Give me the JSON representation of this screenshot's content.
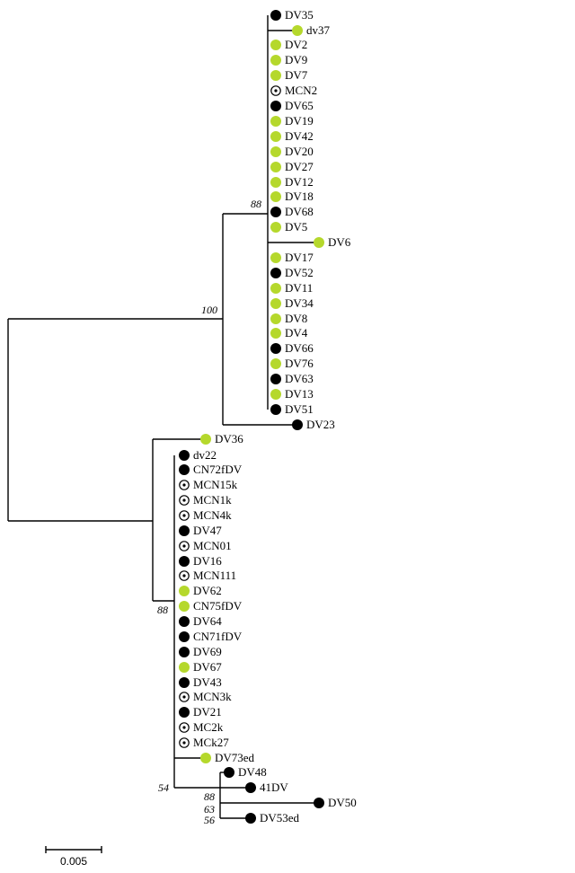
{
  "legend_colors": {
    "green": "#b5d82c",
    "black": "#000000",
    "open": "#ffffff"
  },
  "tips": [
    {
      "label": "DV35",
      "marker": "black"
    },
    {
      "label": "dv37",
      "marker": "green"
    },
    {
      "label": "DV2",
      "marker": "green"
    },
    {
      "label": "DV9",
      "marker": "green"
    },
    {
      "label": "DV7",
      "marker": "green"
    },
    {
      "label": "MCN2",
      "marker": "open"
    },
    {
      "label": "DV65",
      "marker": "black"
    },
    {
      "label": "DV19",
      "marker": "green"
    },
    {
      "label": "DV42",
      "marker": "green"
    },
    {
      "label": "DV20",
      "marker": "green"
    },
    {
      "label": "DV27",
      "marker": "green"
    },
    {
      "label": "DV12",
      "marker": "green"
    },
    {
      "label": "DV18",
      "marker": "green"
    },
    {
      "label": "DV68",
      "marker": "black"
    },
    {
      "label": "DV5",
      "marker": "green"
    },
    {
      "label": "DV6",
      "marker": "green"
    },
    {
      "label": "DV17",
      "marker": "green"
    },
    {
      "label": "DV52",
      "marker": "black"
    },
    {
      "label": "DV11",
      "marker": "green"
    },
    {
      "label": "DV34",
      "marker": "green"
    },
    {
      "label": "DV8",
      "marker": "green"
    },
    {
      "label": "DV4",
      "marker": "green"
    },
    {
      "label": "DV66",
      "marker": "black"
    },
    {
      "label": "DV76",
      "marker": "green"
    },
    {
      "label": "DV63",
      "marker": "black"
    },
    {
      "label": "DV13",
      "marker": "green"
    },
    {
      "label": "DV51",
      "marker": "black"
    },
    {
      "label": "DV23",
      "marker": "black"
    },
    {
      "label": "DV36",
      "marker": "green"
    },
    {
      "label": "dv22",
      "marker": "black"
    },
    {
      "label": "CN72fDV",
      "marker": "black"
    },
    {
      "label": "MCN15k",
      "marker": "open"
    },
    {
      "label": "MCN1k",
      "marker": "open"
    },
    {
      "label": "MCN4k",
      "marker": "open"
    },
    {
      "label": "DV47",
      "marker": "black"
    },
    {
      "label": "MCN01",
      "marker": "open"
    },
    {
      "label": "DV16",
      "marker": "black"
    },
    {
      "label": "MCN111",
      "marker": "open"
    },
    {
      "label": "DV62",
      "marker": "green"
    },
    {
      "label": "CN75fDV",
      "marker": "green"
    },
    {
      "label": "DV64",
      "marker": "black"
    },
    {
      "label": "CN71fDV",
      "marker": "black"
    },
    {
      "label": "DV69",
      "marker": "black"
    },
    {
      "label": "DV67",
      "marker": "green"
    },
    {
      "label": "DV43",
      "marker": "black"
    },
    {
      "label": "MCN3k",
      "marker": "open"
    },
    {
      "label": "DV21",
      "marker": "black"
    },
    {
      "label": "MC2k",
      "marker": "open"
    },
    {
      "label": "MCk27",
      "marker": "open"
    },
    {
      "label": "DV73ed",
      "marker": "green"
    },
    {
      "label": "DV48",
      "marker": "black"
    },
    {
      "label": "41DV",
      "marker": "black"
    },
    {
      "label": "DV50",
      "marker": "black"
    },
    {
      "label": "DV53ed",
      "marker": "black"
    }
  ],
  "support_values": [
    "88",
    "100",
    "88",
    "54",
    "88",
    "63",
    "56"
  ],
  "scale_bar": {
    "label": "0.005"
  }
}
